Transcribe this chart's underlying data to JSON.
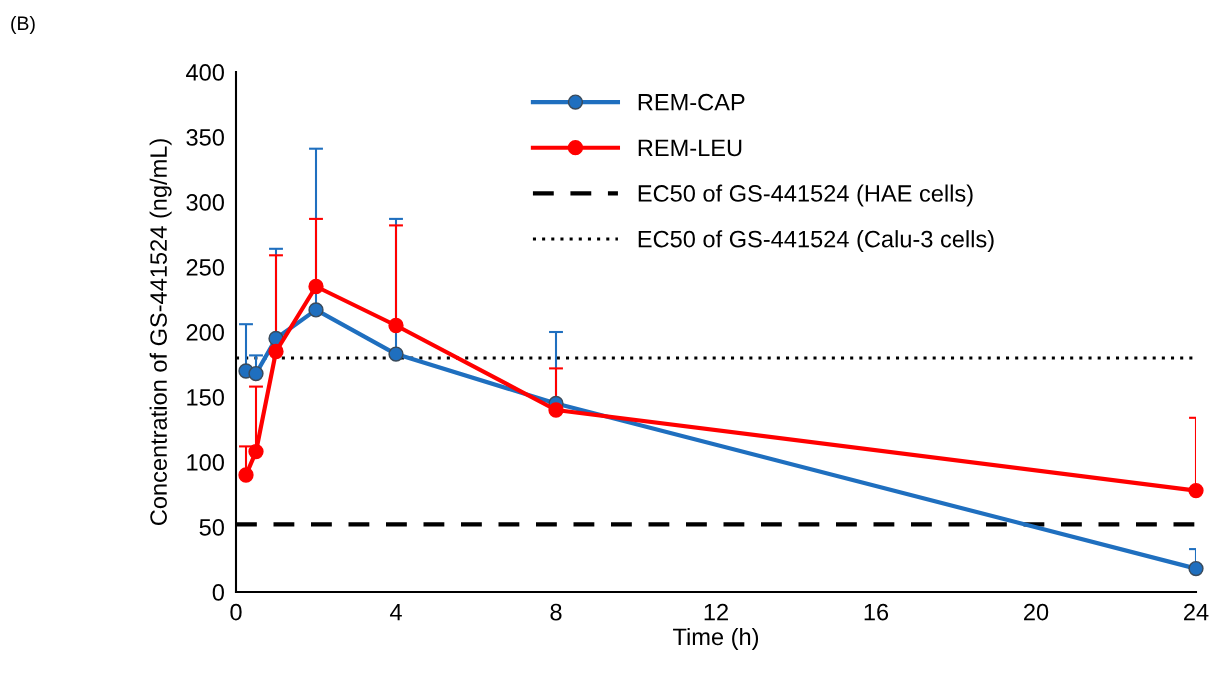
{
  "chart_data": {
    "type": "line",
    "xlabel": "Time (h)",
    "ylabel": "Concentration of GS-441524 (ng/mL)",
    "annotations": [
      "(B)"
    ],
    "x": [
      0.25,
      0.5,
      1,
      2,
      4,
      8,
      24
    ],
    "series": [
      {
        "name": "REM-CAP",
        "color": "#1f6fbf",
        "values": [
          170,
          168,
          195,
          217,
          183,
          145,
          18
        ],
        "errors": [
          [
            170,
            206
          ],
          [
            168,
            182
          ],
          [
            195,
            264
          ],
          [
            217,
            341
          ],
          [
            183,
            287
          ],
          [
            145,
            200
          ],
          [
            18,
            33
          ]
        ]
      },
      {
        "name": "REM-LEU",
        "color": "#ff0000",
        "values": [
          90,
          108,
          185,
          235,
          205,
          140,
          78
        ],
        "errors": [
          [
            90,
            112
          ],
          [
            108,
            158
          ],
          [
            185,
            259
          ],
          [
            235,
            287
          ],
          [
            205,
            282
          ],
          [
            140,
            172
          ],
          [
            78,
            134
          ]
        ]
      }
    ],
    "ref_lines": [
      {
        "axis": "y",
        "value": 52,
        "label": "EC50 of GS-441524 (HAE cells)",
        "color": "#000000",
        "line_style": "dashed"
      },
      {
        "axis": "y",
        "value": 180,
        "label": "EC50 of GS-441524 (Calu-3 cells)",
        "color": "#000000",
        "line_style": "dotted"
      }
    ],
    "xlim": [
      0,
      24
    ],
    "xticks": [
      0,
      4,
      8,
      12,
      16,
      20,
      24
    ],
    "ylim": [
      0,
      400
    ],
    "yticks": [
      0,
      50,
      100,
      150,
      200,
      250,
      300,
      350,
      400
    ],
    "marker": "circle",
    "line_style": "solid",
    "grid": false,
    "legend": "top"
  }
}
